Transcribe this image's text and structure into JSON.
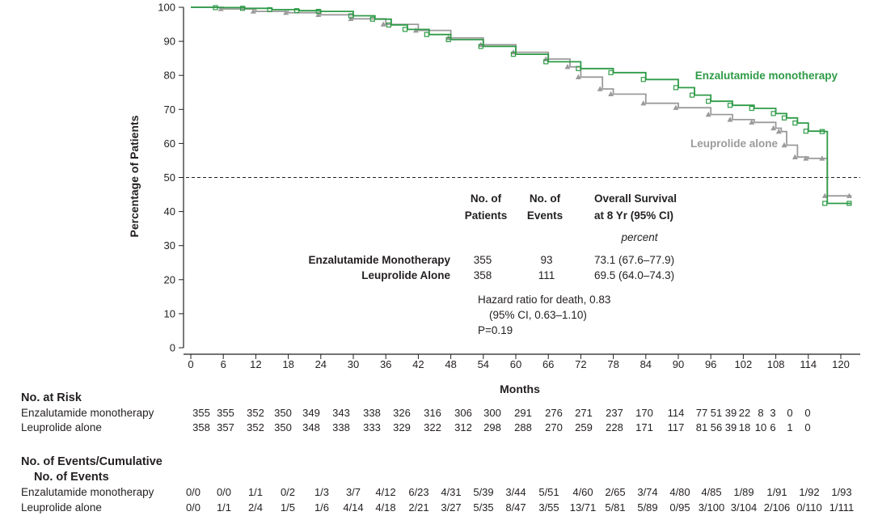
{
  "chart_data": {
    "type": "line",
    "subtype": "kaplan-meier",
    "xlabel": "Months",
    "ylabel": "Percentage of Patients",
    "xlim": [
      0,
      122
    ],
    "ylim": [
      0,
      100
    ],
    "x_ticks": [
      "0",
      "6",
      "12",
      "18",
      "24",
      "30",
      "36",
      "42",
      "48",
      "54",
      "60",
      "66",
      "72",
      "78",
      "84",
      "90",
      "96",
      "102",
      "108",
      "114",
      "120"
    ],
    "y_ticks": [
      "0",
      "10",
      "20",
      "30",
      "40",
      "50",
      "60",
      "70",
      "80",
      "90",
      "100"
    ],
    "reference_line": 50,
    "colors": {
      "enzalutamide": "#2e9b47",
      "leuprolide": "#9b9b9b",
      "text": "#231f20"
    },
    "series": [
      {
        "name": "Enzalutamide monotherapy",
        "label": "Enzalutamide monotherapy",
        "color": "#2e9b47",
        "marker": "square",
        "x": [
          0,
          5,
          10,
          15,
          20,
          24,
          30,
          34,
          37,
          40,
          44,
          48,
          54,
          60,
          66,
          72,
          78,
          84,
          90,
          93,
          96,
          100,
          104,
          108,
          110,
          112,
          114,
          117,
          117.5,
          122
        ],
        "y": [
          100,
          99.9,
          99.7,
          99.3,
          99.0,
          98.8,
          97.5,
          96.5,
          94.8,
          93.5,
          92.0,
          90.5,
          88.5,
          86.2,
          84.0,
          82.0,
          80.8,
          78.8,
          76.4,
          74.2,
          72.4,
          71.2,
          70.3,
          68.8,
          67.5,
          66.0,
          63.6,
          63.5,
          42.4,
          42.4
        ]
      },
      {
        "name": "Leuprolide alone",
        "label": "Leuprolide alone",
        "color": "#9b9b9b",
        "marker": "triangle",
        "x": [
          0,
          6,
          12,
          18,
          24,
          30,
          36,
          42,
          48,
          54,
          60,
          66,
          70,
          72,
          76,
          78,
          84,
          90,
          96,
          100,
          104,
          108,
          109,
          110,
          112,
          114,
          117,
          117.5,
          122
        ],
        "y": [
          100,
          99.5,
          98.8,
          98.4,
          97.8,
          96.6,
          95.0,
          93.2,
          91.0,
          89.0,
          86.8,
          84.8,
          82.5,
          79.5,
          76.0,
          74.5,
          71.8,
          70.5,
          68.5,
          67.0,
          66.2,
          64.5,
          63.5,
          59.5,
          56.0,
          55.6,
          55.6,
          44.6,
          44.6
        ]
      }
    ],
    "summary_table": {
      "headers": [
        [
          "No. of",
          "Patients"
        ],
        [
          "No. of",
          "Events"
        ],
        [
          "Overall Survival",
          "at 8 Yr (95% CI)"
        ]
      ],
      "unit_row": "percent",
      "rows": [
        {
          "label": "Enzalutamide Monotherapy",
          "patients": "355",
          "events": "93",
          "survival": "73.1 (67.6–77.9)"
        },
        {
          "label": "Leuprolide Alone",
          "patients": "358",
          "events": "111",
          "survival": "69.5 (64.0–74.3)"
        }
      ]
    },
    "hazard": {
      "line1": "Hazard ratio for death, 0.83",
      "line2": "(95% CI, 0.63–1.10)",
      "line3": "P=0.19"
    },
    "at_risk": {
      "header": "No. at Risk",
      "rows": [
        {
          "label": "Enzalutamide monotherapy",
          "values": [
            "355",
            "355",
            "352",
            "350",
            "349",
            "343",
            "338",
            "326",
            "316",
            "306",
            "300",
            "291",
            "276",
            "271",
            "237",
            "170",
            "114",
            "77",
            "51",
            "39",
            "22",
            "8",
            "3",
            "0",
            "0"
          ]
        },
        {
          "label": "Leuprolide alone",
          "values": [
            "358",
            "357",
            "352",
            "350",
            "348",
            "338",
            "333",
            "329",
            "322",
            "312",
            "298",
            "288",
            "270",
            "259",
            "228",
            "171",
            "117",
            "81",
            "56",
            "39",
            "18",
            "10",
            "6",
            "1",
            "0"
          ]
        }
      ]
    },
    "events": {
      "header_line1": "No. of Events/Cumulative",
      "header_line2": "No. of Events",
      "rows": [
        {
          "label": "Enzalutamide monotherapy",
          "values": [
            "0/0",
            "0/0",
            "1/1",
            "0/2",
            "1/3",
            "3/7",
            "4/12",
            "6/23",
            "4/31",
            "5/39",
            "3/44",
            "5/51",
            "4/60",
            "2/65",
            "3/74",
            "4/80",
            "4/85",
            "1/89",
            "1/91",
            "1/92",
            "1/93"
          ]
        },
        {
          "label": "Leuprolide alone",
          "values": [
            "0/0",
            "1/1",
            "2/4",
            "1/5",
            "1/6",
            "4/14",
            "4/18",
            "2/21",
            "3/27",
            "5/35",
            "8/47",
            "3/55",
            "13/71",
            "5/81",
            "5/89",
            "0/95",
            "3/100",
            "3/104",
            "2/106",
            "0/110",
            "1/111"
          ]
        }
      ]
    }
  }
}
